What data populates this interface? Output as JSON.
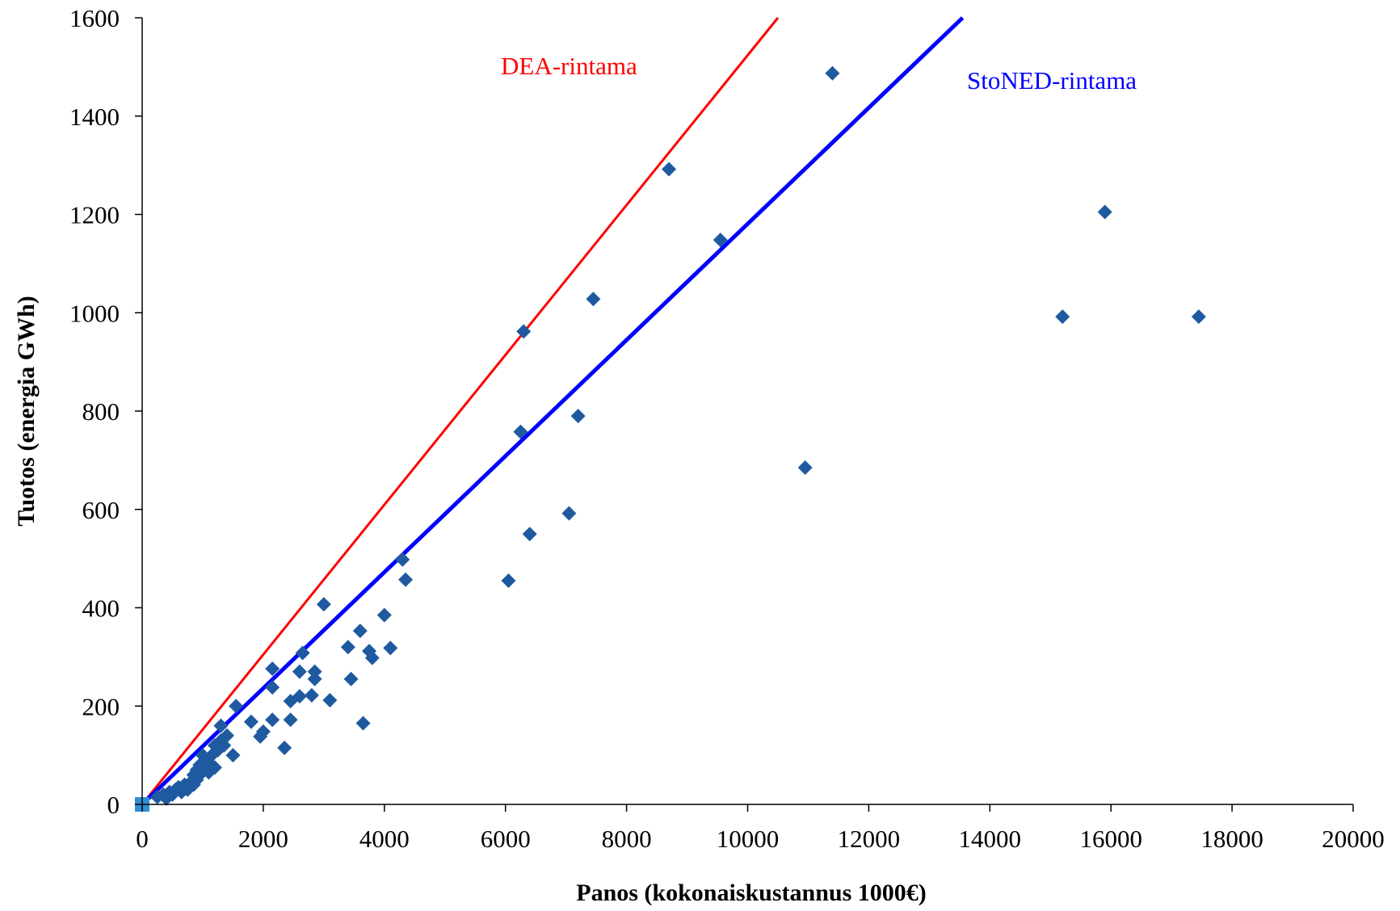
{
  "chart_data": {
    "type": "scatter",
    "title": "",
    "xlabel": "Panos (kokonaiskustannus 1000€)",
    "ylabel": "Tuotos (energia GWh)",
    "xlim": [
      0,
      20000
    ],
    "ylim": [
      0,
      1600
    ],
    "xticks": [
      "0",
      "2000",
      "4000",
      "6000",
      "8000",
      "10000",
      "12000",
      "14000",
      "16000",
      "18000",
      "20000"
    ],
    "yticks": [
      "0",
      "200",
      "400",
      "600",
      "800",
      "1000",
      "1200",
      "1400",
      "1600"
    ],
    "grid": false,
    "colors": {
      "points": "#1f5aa0",
      "origin_marker": "#2f8fd6",
      "dea": "#ff0000",
      "stoned": "#0000ff",
      "axis": "#000000"
    },
    "series": [
      {
        "type": "scatter",
        "marker": "diamond",
        "points": [
          [
            250,
            15
          ],
          [
            350,
            20
          ],
          [
            400,
            12
          ],
          [
            450,
            25
          ],
          [
            500,
            20
          ],
          [
            550,
            30
          ],
          [
            600,
            35
          ],
          [
            650,
            25
          ],
          [
            700,
            40
          ],
          [
            750,
            30
          ],
          [
            800,
            45
          ],
          [
            850,
            60
          ],
          [
            850,
            40
          ],
          [
            900,
            50
          ],
          [
            900,
            70
          ],
          [
            950,
            80
          ],
          [
            950,
            60
          ],
          [
            1000,
            100
          ],
          [
            1000,
            75
          ],
          [
            1050,
            90
          ],
          [
            1100,
            65
          ],
          [
            1100,
            85
          ],
          [
            1150,
            100
          ],
          [
            1200,
            75
          ],
          [
            1200,
            120
          ],
          [
            1250,
            110
          ],
          [
            1300,
            130
          ],
          [
            1300,
            160
          ],
          [
            1350,
            120
          ],
          [
            1400,
            140
          ],
          [
            1500,
            100
          ],
          [
            1550,
            200
          ],
          [
            1800,
            168
          ],
          [
            1950,
            138
          ],
          [
            2000,
            148
          ],
          [
            2150,
            172
          ],
          [
            2150,
            238
          ],
          [
            2150,
            276
          ],
          [
            2350,
            115
          ],
          [
            2450,
            210
          ],
          [
            2450,
            172
          ],
          [
            2600,
            220
          ],
          [
            2600,
            270
          ],
          [
            2650,
            308
          ],
          [
            2800,
            222
          ],
          [
            2850,
            255
          ],
          [
            2850,
            270
          ],
          [
            3000,
            407
          ],
          [
            3100,
            212
          ],
          [
            3400,
            320
          ],
          [
            3450,
            255
          ],
          [
            3600,
            353
          ],
          [
            3650,
            165
          ],
          [
            3750,
            312
          ],
          [
            3800,
            298
          ],
          [
            4000,
            385
          ],
          [
            4100,
            318
          ],
          [
            4300,
            498
          ],
          [
            4350,
            457
          ],
          [
            6050,
            455
          ],
          [
            6250,
            758
          ],
          [
            6300,
            962
          ],
          [
            6400,
            550
          ],
          [
            7050,
            592
          ],
          [
            7200,
            790
          ],
          [
            7450,
            1028
          ],
          [
            8700,
            1292
          ],
          [
            9550,
            1148
          ],
          [
            10950,
            685
          ],
          [
            11400,
            1487
          ],
          [
            15200,
            992
          ],
          [
            15900,
            1205
          ],
          [
            17450,
            992
          ]
        ]
      },
      {
        "type": "scatter",
        "marker": "square",
        "points": [
          [
            0,
            0
          ]
        ]
      },
      {
        "type": "line",
        "name": "DEA-rintama",
        "points": [
          [
            0,
            0
          ],
          [
            10500,
            1600
          ]
        ]
      },
      {
        "type": "line",
        "name": "StoNED-rintama",
        "points": [
          [
            0,
            0
          ],
          [
            13550,
            1600
          ]
        ]
      }
    ],
    "annotations": [
      {
        "text": "DEA-rintama",
        "series": "DEA-rintama"
      },
      {
        "text": "StoNED-rintama",
        "series": "StoNED-rintama"
      }
    ]
  }
}
